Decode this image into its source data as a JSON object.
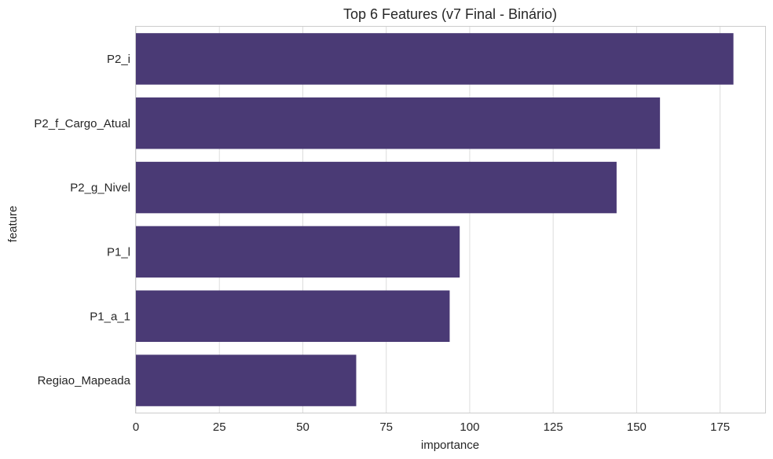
{
  "chart_data": {
    "type": "bar",
    "orientation": "horizontal",
    "title": "Top 6 Features (v7 Final - Binário)",
    "xlabel": "importance",
    "ylabel": "feature",
    "categories": [
      "P2_i",
      "P2_f_Cargo_Atual",
      "P2_g_Nivel",
      "P1_l",
      "P1_a_1",
      "Regiao_Mapeada"
    ],
    "values": [
      179,
      157,
      144,
      97,
      94,
      66
    ],
    "xlim": [
      0,
      188.5
    ],
    "xticks": [
      0,
      25,
      50,
      75,
      100,
      125,
      150,
      175
    ],
    "grid": true,
    "bar_color": "#4a3a75",
    "grid_color": "#dcdcdc",
    "axis_color": "#cccccc"
  }
}
